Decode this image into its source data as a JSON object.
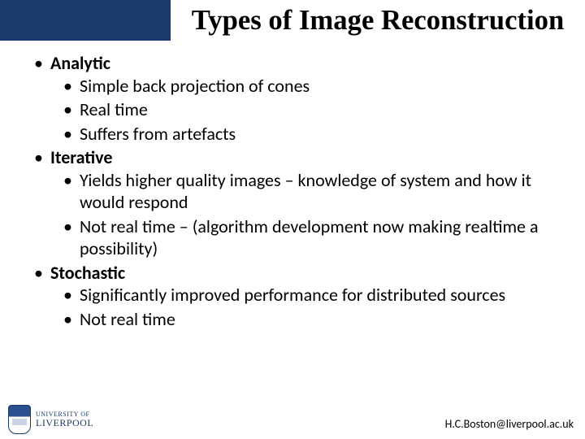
{
  "title": {
    "text": "Types of Image Reconstruction",
    "left_bg": "#1b3a6b",
    "right_bg": "#ffffff",
    "text_color": "#000000",
    "font_size_pt": 26
  },
  "body": {
    "font_size_pt": 22,
    "text_color": "#000000",
    "bullet_char": "•",
    "items": [
      {
        "text": "Analytic",
        "bold": true,
        "children": [
          {
            "text": "Simple back projection of cones"
          },
          {
            "text": "Real time"
          },
          {
            "text": "Suffers from artefacts"
          }
        ]
      },
      {
        "text": "Iterative",
        "bold": true,
        "children": [
          {
            "text": "Yields higher quality images – knowledge of system and how it would respond"
          },
          {
            "text": "Not real time – (algorithm development now making realtime a possibility)"
          }
        ]
      },
      {
        "text": "Stochastic",
        "bold": true,
        "children": [
          {
            "text": "Significantly improved performance for distributed sources"
          },
          {
            "text": "Not real time"
          }
        ]
      }
    ]
  },
  "footer": {
    "logo_line1": "UNIVERSITY OF",
    "logo_line2": "LIVERPOOL",
    "email": "H.C.Boston@liverpool.ac.uk"
  }
}
